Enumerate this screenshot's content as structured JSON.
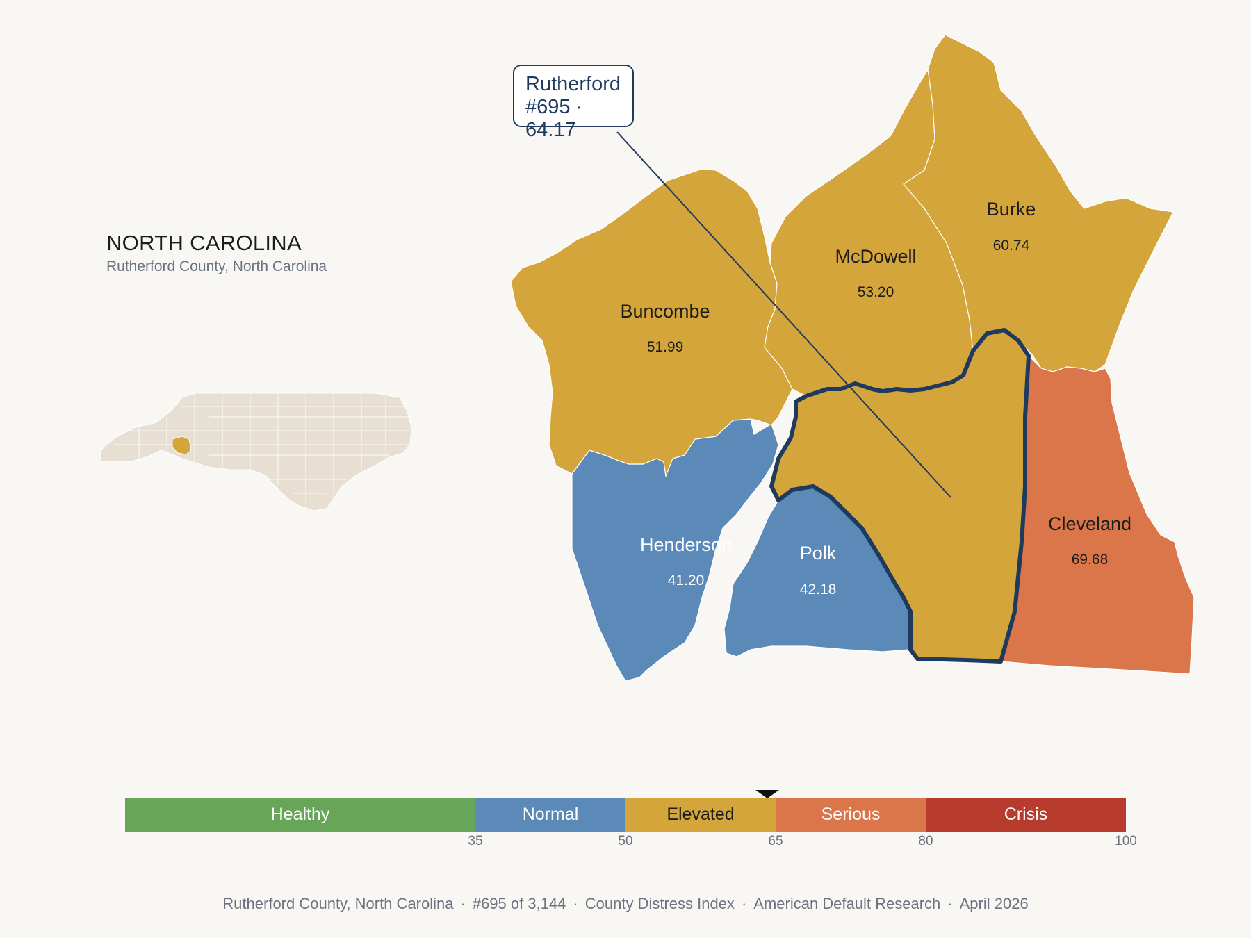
{
  "header": {
    "state": "NORTH CAROLINA",
    "subtitle": "Rutherford County, North Carolina"
  },
  "callout": {
    "line1": "Rutherford",
    "line2": "#695 · 64.17"
  },
  "counties": [
    {
      "name": "Buncombe",
      "score": "51.99",
      "category": "Elevated"
    },
    {
      "name": "McDowell",
      "score": "53.20",
      "category": "Elevated"
    },
    {
      "name": "Burke",
      "score": "60.74",
      "category": "Elevated"
    },
    {
      "name": "Henderson",
      "score": "41.20",
      "category": "Normal"
    },
    {
      "name": "Polk",
      "score": "42.18",
      "category": "Normal"
    },
    {
      "name": "Cleveland",
      "score": "69.68",
      "category": "Serious"
    },
    {
      "name": "Rutherford",
      "score": "64.17",
      "category": "Elevated",
      "rank": "#695",
      "highlighted": true
    }
  ],
  "legend": {
    "segments": [
      {
        "label": "Healthy",
        "from": 0,
        "to": 35,
        "color": "#67a659"
      },
      {
        "label": "Normal",
        "from": 35,
        "to": 50,
        "color": "#5b89b8"
      },
      {
        "label": "Elevated",
        "from": 50,
        "to": 65,
        "color": "#d4a53a"
      },
      {
        "label": "Serious",
        "from": 65,
        "to": 80,
        "color": "#db764a"
      },
      {
        "label": "Crisis",
        "from": 80,
        "to": 100,
        "color": "#b83c2d"
      }
    ],
    "ticks": [
      "35",
      "50",
      "65",
      "80",
      "100"
    ],
    "marker_value": 64.17
  },
  "colors": {
    "normal": "#5b89b8",
    "elevated": "#d4a53a",
    "serious": "#db764a",
    "highlight_outline": "#1f3a5f",
    "inset_base": "#e6dfd2",
    "background": "#f9f7f4"
  },
  "footer": {
    "parts": [
      "Rutherford County, North Carolina",
      "#695 of 3,144",
      "County Distress Index",
      "American Default Research",
      "April 2026"
    ]
  }
}
